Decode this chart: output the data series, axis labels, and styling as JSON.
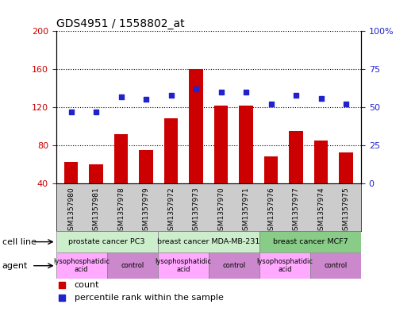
{
  "title": "GDS4951 / 1558802_at",
  "samples": [
    "GSM1357980",
    "GSM1357981",
    "GSM1357978",
    "GSM1357979",
    "GSM1357972",
    "GSM1357973",
    "GSM1357970",
    "GSM1357971",
    "GSM1357976",
    "GSM1357977",
    "GSM1357974",
    "GSM1357975"
  ],
  "counts": [
    62,
    60,
    92,
    75,
    108,
    160,
    122,
    122,
    68,
    95,
    85,
    72
  ],
  "percentiles": [
    47,
    47,
    57,
    55,
    58,
    62,
    60,
    60,
    52,
    58,
    56,
    52
  ],
  "ylim_left": [
    40,
    200
  ],
  "ylim_right": [
    0,
    100
  ],
  "yticks_left": [
    40,
    80,
    120,
    160,
    200
  ],
  "yticks_right": [
    0,
    25,
    50,
    75,
    100
  ],
  "bar_color": "#cc0000",
  "dot_color": "#2222cc",
  "cell_line_groups": [
    {
      "label": "prostate cancer PC3",
      "start": 0,
      "end": 4,
      "color": "#cceecc"
    },
    {
      "label": "breast cancer MDA-MB-231",
      "start": 4,
      "end": 8,
      "color": "#cceecc"
    },
    {
      "label": "breast cancer MCF7",
      "start": 8,
      "end": 12,
      "color": "#88cc88"
    }
  ],
  "agent_groups": [
    {
      "label": "lysophosphatidic\nacid",
      "start": 0,
      "end": 2,
      "color": "#ffaaff"
    },
    {
      "label": "control",
      "start": 2,
      "end": 4,
      "color": "#cc88cc"
    },
    {
      "label": "lysophosphatidic\nacid",
      "start": 4,
      "end": 6,
      "color": "#ffaaff"
    },
    {
      "label": "control",
      "start": 6,
      "end": 8,
      "color": "#cc88cc"
    },
    {
      "label": "lysophosphatidic\nacid",
      "start": 8,
      "end": 10,
      "color": "#ffaaff"
    },
    {
      "label": "control",
      "start": 10,
      "end": 12,
      "color": "#cc88cc"
    }
  ],
  "tick_color_left": "#cc0000",
  "tick_color_right": "#2222cc",
  "sample_bg_color": "#cccccc",
  "legend_count_label": "count",
  "legend_pct_label": "percentile rank within the sample",
  "cell_line_label": "cell line",
  "agent_label": "agent"
}
